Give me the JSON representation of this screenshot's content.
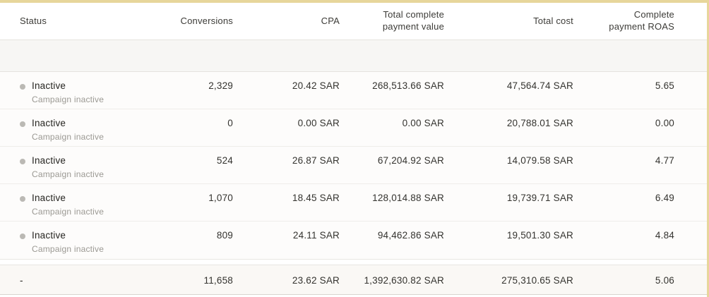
{
  "colors": {
    "accent_border": "#e7d69b",
    "status_dot": "#bbb9b4",
    "row_background": "#fdfcfb",
    "band_background": "#f7f6f4",
    "totals_background": "#faf8f5"
  },
  "table": {
    "columns": {
      "status": "Status",
      "conversions": "Conversions",
      "cpa": "CPA",
      "payment_value": "Total complete payment value",
      "total_cost": "Total cost",
      "roas": "Complete payment ROAS"
    },
    "rows": [
      {
        "status": "Inactive",
        "status_detail": "Campaign inactive",
        "conversions": "2,329",
        "cpa": "20.42 SAR",
        "payment_value": "268,513.66 SAR",
        "total_cost": "47,564.74 SAR",
        "roas": "5.65"
      },
      {
        "status": "Inactive",
        "status_detail": "Campaign inactive",
        "conversions": "0",
        "cpa": "0.00 SAR",
        "payment_value": "0.00 SAR",
        "total_cost": "20,788.01 SAR",
        "roas": "0.00"
      },
      {
        "status": "Inactive",
        "status_detail": "Campaign inactive",
        "conversions": "524",
        "cpa": "26.87 SAR",
        "payment_value": "67,204.92 SAR",
        "total_cost": "14,079.58 SAR",
        "roas": "4.77"
      },
      {
        "status": "Inactive",
        "status_detail": "Campaign inactive",
        "conversions": "1,070",
        "cpa": "18.45 SAR",
        "payment_value": "128,014.88 SAR",
        "total_cost": "19,739.71 SAR",
        "roas": "6.49"
      },
      {
        "status": "Inactive",
        "status_detail": "Campaign inactive",
        "conversions": "809",
        "cpa": "24.11 SAR",
        "payment_value": "94,462.86 SAR",
        "total_cost": "19,501.30 SAR",
        "roas": "4.84"
      }
    ],
    "totals": {
      "status": "-",
      "conversions": "11,658",
      "cpa": "23.62 SAR",
      "payment_value": "1,392,630.82 SAR",
      "total_cost": "275,310.65 SAR",
      "roas": "5.06"
    }
  }
}
